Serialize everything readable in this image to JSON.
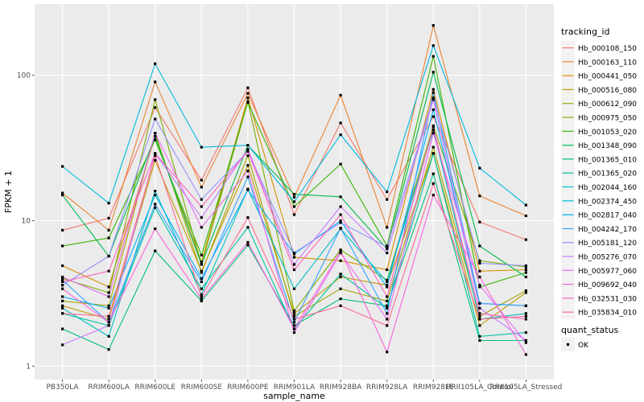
{
  "chart_data": {
    "type": "line",
    "xlabel": "sample_name",
    "ylabel": "FPKM + 1",
    "y_scale": "log10",
    "ylim": [
      1,
      250
    ],
    "y_ticks": [
      1,
      10,
      100
    ],
    "y_tick_labels": [
      "1",
      "10",
      "100"
    ],
    "grid": true,
    "legend_position": "right",
    "categories": [
      "PB350LA",
      "RRIM600LA",
      "RRIM600LE",
      "RRIM600SE",
      "RRIM600PE",
      "RRIM901LA",
      "RRIM928BA",
      "RRIM928LA",
      "RRIM928LE",
      "RRII105LA_Control",
      "RRII105LA_Stressed"
    ],
    "x_tick_labels": [
      "PB350LA",
      "RRIM600LA",
      "RRIM600LE",
      "RRIM600SE",
      "RRIM600PE",
      "RRIM901LA",
      "RRIM928BA",
      "RRIM928LA",
      "RRIM928LE",
      "RRII105LA_Control",
      "RRII105LA_Stressed"
    ],
    "legend": {
      "tracking_title": "tracking_id",
      "status_title": "quant_status",
      "status_label": "OK"
    },
    "series": [
      {
        "name": "Hb_000108_150",
        "color": "#F8766D",
        "values": [
          8.6,
          10.4,
          60,
          19,
          82,
          11,
          47,
          14,
          52,
          9.8,
          7.4
        ]
      },
      {
        "name": "Hb_000163_110",
        "color": "#EA8331",
        "values": [
          15.5,
          8.6,
          90,
          17,
          75,
          14.5,
          73,
          9,
          220,
          14.8,
          10.8
        ]
      },
      {
        "name": "Hb_000441_050",
        "color": "#D89000",
        "values": [
          4.9,
          3.5,
          38,
          5.2,
          70,
          5.6,
          5.3,
          4.6,
          80,
          4.5,
          4.6
        ]
      },
      {
        "name": "Hb_000516_080",
        "color": "#C09B00",
        "values": [
          2.6,
          2.1,
          26,
          4.5,
          24,
          2.3,
          4.1,
          3.6,
          29,
          1.9,
          3.2
        ]
      },
      {
        "name": "Hb_000612_090",
        "color": "#A3A500",
        "values": [
          2.8,
          2.6,
          40,
          4.4,
          28,
          2.2,
          3.4,
          2.8,
          32,
          2.2,
          3.3
        ]
      },
      {
        "name": "Hb_000975_050",
        "color": "#7CAE00",
        "values": [
          4.0,
          3.2,
          68,
          5.0,
          66,
          2.4,
          6.3,
          3.9,
          45,
          5.3,
          4.8
        ]
      },
      {
        "name": "Hb_001053_020",
        "color": "#39B600",
        "values": [
          6.7,
          7.6,
          36,
          5.8,
          65,
          12.5,
          24.5,
          6.7,
          135,
          3.5,
          4.4
        ]
      },
      {
        "name": "Hb_001348_090",
        "color": "#00BB4E",
        "values": [
          15.0,
          5.7,
          38,
          5.0,
          33,
          15.2,
          14.6,
          6.4,
          105,
          6.7,
          4.1
        ]
      },
      {
        "name": "Hb_001365_010",
        "color": "#00BF7D",
        "values": [
          1.8,
          1.3,
          6.2,
          2.8,
          6.8,
          1.9,
          2.9,
          2.6,
          21,
          1.5,
          1.5
        ]
      },
      {
        "name": "Hb_001365_020",
        "color": "#00C1A3",
        "values": [
          2.3,
          1.9,
          12.3,
          3.4,
          9.0,
          1.8,
          4.3,
          2.5,
          29,
          1.6,
          1.7
        ]
      },
      {
        "name": "Hb_002044_160",
        "color": "#00BFC4",
        "values": [
          2.5,
          1.6,
          16,
          3.1,
          16.5,
          3.4,
          8.8,
          3.8,
          42,
          2.1,
          2.3
        ]
      },
      {
        "name": "Hb_002374_450",
        "color": "#00BAE0",
        "values": [
          23.6,
          13.2,
          120,
          32,
          33,
          13.5,
          39,
          15.8,
          160,
          23,
          12.8
        ]
      },
      {
        "name": "Hb_002817_040",
        "color": "#00B0F6",
        "values": [
          3.0,
          2.5,
          15,
          4.0,
          16.3,
          5.9,
          10,
          3.5,
          58,
          2.7,
          2.6
        ]
      },
      {
        "name": "Hb_004242_170",
        "color": "#35A2FF",
        "values": [
          3.9,
          2.0,
          13,
          3.8,
          20,
          2.0,
          8.9,
          2.3,
          76,
          2.7,
          2.6
        ]
      },
      {
        "name": "Hb_005181_120",
        "color": "#9590FF",
        "values": [
          3.6,
          5.7,
          50,
          14,
          30,
          6.0,
          9.7,
          6.6,
          70,
          5.1,
          4.9
        ]
      },
      {
        "name": "Hb_005276_070",
        "color": "#C77CFF",
        "values": [
          1.4,
          1.9,
          29,
          10.5,
          31,
          5.0,
          12.5,
          6.0,
          68,
          2.5,
          1.5
        ]
      },
      {
        "name": "Hb_005977_060",
        "color": "#E76BF3",
        "values": [
          4.1,
          3.0,
          40,
          9.0,
          22,
          1.7,
          6.0,
          2.1,
          40,
          3.6,
          1.45
        ]
      },
      {
        "name": "Hb_009692_040",
        "color": "#FA62DB",
        "values": [
          3.4,
          2.0,
          8.8,
          2.9,
          7.1,
          1.8,
          6.2,
          1.25,
          15,
          4.1,
          1.2
        ]
      },
      {
        "name": "Hb_032531_030",
        "color": "#FF62BC",
        "values": [
          3.8,
          4.5,
          29,
          12.5,
          30,
          4.6,
          11,
          3.0,
          44,
          2.3,
          2.1
        ]
      },
      {
        "name": "Hb_035834_010",
        "color": "#FF6C91",
        "values": [
          2.3,
          2.2,
          28,
          3.0,
          10.5,
          2.1,
          2.6,
          1.9,
          18,
          2.1,
          2.2
        ]
      }
    ]
  }
}
